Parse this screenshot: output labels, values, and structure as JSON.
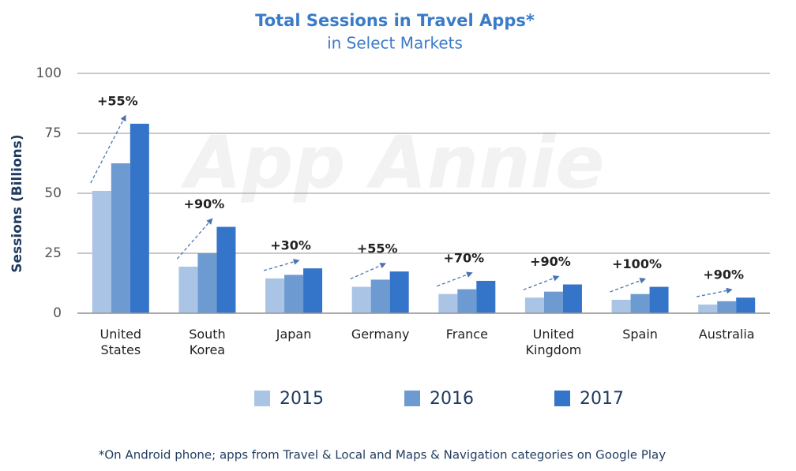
{
  "chart_data": {
    "type": "bar",
    "title": "Total Sessions in Travel Apps*",
    "subtitle": "in Select Markets",
    "y_label": "Sessions (Billions)",
    "watermark": "App Annie",
    "footnote": "*On Android phone; apps from Travel & Local and Maps & Navigation categories on Google Play",
    "categories": [
      "United States",
      "South Korea",
      "Japan",
      "Germany",
      "France",
      "United Kingdom",
      "Spain",
      "Australia"
    ],
    "annotations": [
      "+55%",
      "+90%",
      "+30%",
      "+55%",
      "+70%",
      "+90%",
      "+100%",
      "+90%"
    ],
    "series": [
      {
        "name": "2015",
        "color": "#a9c4e4",
        "values": [
          51,
          19.4,
          14.5,
          11,
          8,
          6.5,
          5.6,
          3.6
        ]
      },
      {
        "name": "2016",
        "color": "#6d9bd1",
        "values": [
          62.5,
          25,
          16,
          14,
          10,
          9,
          8,
          5
        ]
      },
      {
        "name": "2017",
        "color": "#3474c9",
        "values": [
          79,
          36,
          18.7,
          17.4,
          13.5,
          12,
          11,
          6.5
        ]
      }
    ],
    "ylim": [
      0,
      100
    ],
    "yticks": [
      0,
      25,
      50,
      75,
      100
    ],
    "grid": true
  }
}
